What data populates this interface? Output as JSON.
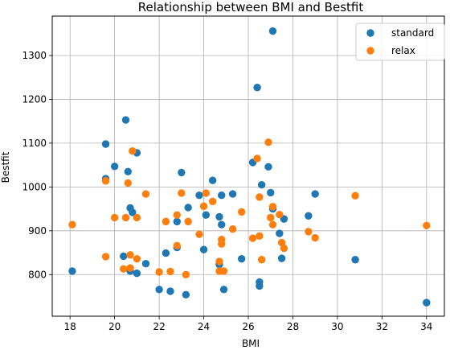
{
  "chart_data": {
    "type": "scatter",
    "title": "Relationship between BMI and Bestfit",
    "xlabel": "BMI",
    "ylabel": "Bestfit",
    "xlim": [
      17.2,
      34.8
    ],
    "ylim": [
      705,
      1390
    ],
    "xticks": [
      18,
      20,
      22,
      24,
      26,
      28,
      30,
      32,
      34
    ],
    "yticks": [
      800,
      900,
      1000,
      1100,
      1200,
      1300
    ],
    "grid": true,
    "legend_position": "top-right",
    "series": [
      {
        "name": "standard",
        "color": "#1f77b4",
        "points": [
          [
            18.1,
            808
          ],
          [
            19.6,
            1098
          ],
          [
            19.6,
            1019
          ],
          [
            20.0,
            1047
          ],
          [
            20.4,
            842
          ],
          [
            20.5,
            1153
          ],
          [
            20.6,
            1035
          ],
          [
            20.7,
            952
          ],
          [
            20.7,
            808
          ],
          [
            20.8,
            942
          ],
          [
            21.0,
            1078
          ],
          [
            21.0,
            803
          ],
          [
            21.4,
            825
          ],
          [
            22.0,
            766
          ],
          [
            22.3,
            849
          ],
          [
            22.5,
            762
          ],
          [
            22.8,
            921
          ],
          [
            22.8,
            862
          ],
          [
            23.0,
            1033
          ],
          [
            23.2,
            754
          ],
          [
            23.3,
            953
          ],
          [
            23.8,
            981
          ],
          [
            24.0,
            857
          ],
          [
            24.1,
            936
          ],
          [
            24.4,
            1015
          ],
          [
            24.7,
            932
          ],
          [
            24.7,
            823
          ],
          [
            24.8,
            981
          ],
          [
            24.8,
            914
          ],
          [
            24.9,
            766
          ],
          [
            25.3,
            984
          ],
          [
            25.7,
            836
          ],
          [
            26.2,
            1056
          ],
          [
            26.4,
            1227
          ],
          [
            26.5,
            783
          ],
          [
            26.5,
            774
          ],
          [
            26.6,
            1005
          ],
          [
            26.9,
            1046
          ],
          [
            27.0,
            987
          ],
          [
            27.1,
            950
          ],
          [
            27.1,
            1356
          ],
          [
            27.4,
            894
          ],
          [
            27.5,
            837
          ],
          [
            27.6,
            927
          ],
          [
            28.7,
            934
          ],
          [
            29.0,
            984
          ],
          [
            30.8,
            834
          ],
          [
            34.0,
            736
          ]
        ]
      },
      {
        "name": "relax",
        "color": "#ff7f0e",
        "points": [
          [
            18.1,
            914
          ],
          [
            19.6,
            1014
          ],
          [
            19.6,
            841
          ],
          [
            20.0,
            930
          ],
          [
            20.4,
            813
          ],
          [
            20.5,
            930
          ],
          [
            20.6,
            1009
          ],
          [
            20.7,
            845
          ],
          [
            20.7,
            815
          ],
          [
            20.8,
            1082
          ],
          [
            21.0,
            930
          ],
          [
            21.0,
            836
          ],
          [
            21.4,
            984
          ],
          [
            22.0,
            806
          ],
          [
            22.3,
            921
          ],
          [
            22.5,
            807
          ],
          [
            22.8,
            936
          ],
          [
            22.8,
            866
          ],
          [
            23.0,
            986
          ],
          [
            23.2,
            800
          ],
          [
            23.3,
            921
          ],
          [
            23.8,
            892
          ],
          [
            24.0,
            956
          ],
          [
            24.1,
            986
          ],
          [
            24.4,
            967
          ],
          [
            24.7,
            830
          ],
          [
            24.7,
            808
          ],
          [
            24.8,
            880
          ],
          [
            24.8,
            870
          ],
          [
            24.9,
            808
          ],
          [
            25.3,
            904
          ],
          [
            25.7,
            943
          ],
          [
            26.2,
            883
          ],
          [
            26.4,
            1065
          ],
          [
            26.5,
            888
          ],
          [
            26.5,
            977
          ],
          [
            26.6,
            834
          ],
          [
            26.9,
            1102
          ],
          [
            27.0,
            930
          ],
          [
            27.1,
            955
          ],
          [
            27.1,
            914
          ],
          [
            27.4,
            937
          ],
          [
            27.5,
            873
          ],
          [
            27.6,
            860
          ],
          [
            28.7,
            898
          ],
          [
            29.0,
            884
          ],
          [
            30.8,
            980
          ],
          [
            34.0,
            912
          ]
        ]
      }
    ]
  }
}
